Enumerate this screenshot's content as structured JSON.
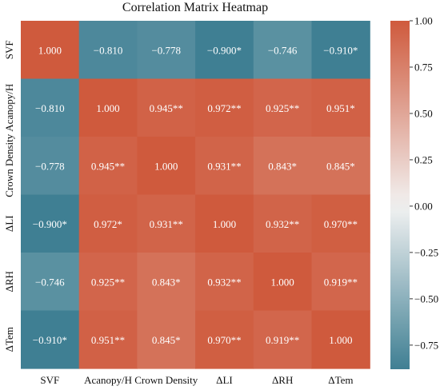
{
  "chart_data": {
    "type": "heatmap",
    "title": "Correlation Matrix Heatmap",
    "x_labels": [
      "SVF",
      "Acanopy/H",
      "Crown Density",
      "ΔLI",
      "ΔRH",
      "ΔTem"
    ],
    "y_labels": [
      "SVF",
      "Acanopy/H",
      "Crown Density",
      "ΔLI",
      "ΔRH",
      "ΔTem"
    ],
    "values": [
      [
        1.0,
        -0.81,
        -0.778,
        -0.9,
        -0.746,
        -0.91
      ],
      [
        -0.81,
        1.0,
        0.945,
        0.972,
        0.925,
        0.951
      ],
      [
        -0.778,
        0.945,
        1.0,
        0.931,
        0.843,
        0.845
      ],
      [
        -0.9,
        0.972,
        0.931,
        1.0,
        0.932,
        0.97
      ],
      [
        -0.746,
        0.925,
        0.843,
        0.932,
        1.0,
        0.919
      ],
      [
        -0.91,
        0.951,
        0.845,
        0.97,
        0.919,
        1.0
      ]
    ],
    "annotations": [
      [
        "1.000",
        "−0.810",
        "−0.778",
        "−0.900*",
        "−0.746",
        "−0.910*"
      ],
      [
        "−0.810",
        "1.000",
        "0.945**",
        "0.972**",
        "0.925**",
        "0.951*"
      ],
      [
        "−0.778",
        "0.945**",
        "1.000",
        "0.931**",
        "0.843*",
        "0.845*"
      ],
      [
        "−0.900*",
        "0.972*",
        "0.931**",
        "1.000",
        "0.932**",
        "0.970**"
      ],
      [
        "−0.746",
        "0.925**",
        "0.843*",
        "0.932**",
        "1.000",
        "0.919**"
      ],
      [
        "−0.910*",
        "0.951**",
        "0.845*",
        "0.970**",
        "0.919**",
        "1.000"
      ]
    ],
    "colorbar": {
      "vmin": -0.88,
      "vmax": 1.0,
      "ticks": [
        1.0,
        0.75,
        0.5,
        0.25,
        0.0,
        -0.25,
        -0.5,
        -0.75
      ],
      "tick_labels": [
        "1.00",
        "0.75",
        "0.50",
        "0.25",
        "0.00",
        "−0.25",
        "−0.50",
        "−0.75"
      ],
      "colors": {
        "negative": "#3f7f93",
        "center": "#f2f2f2",
        "positive": "#cf5a3d"
      }
    }
  }
}
